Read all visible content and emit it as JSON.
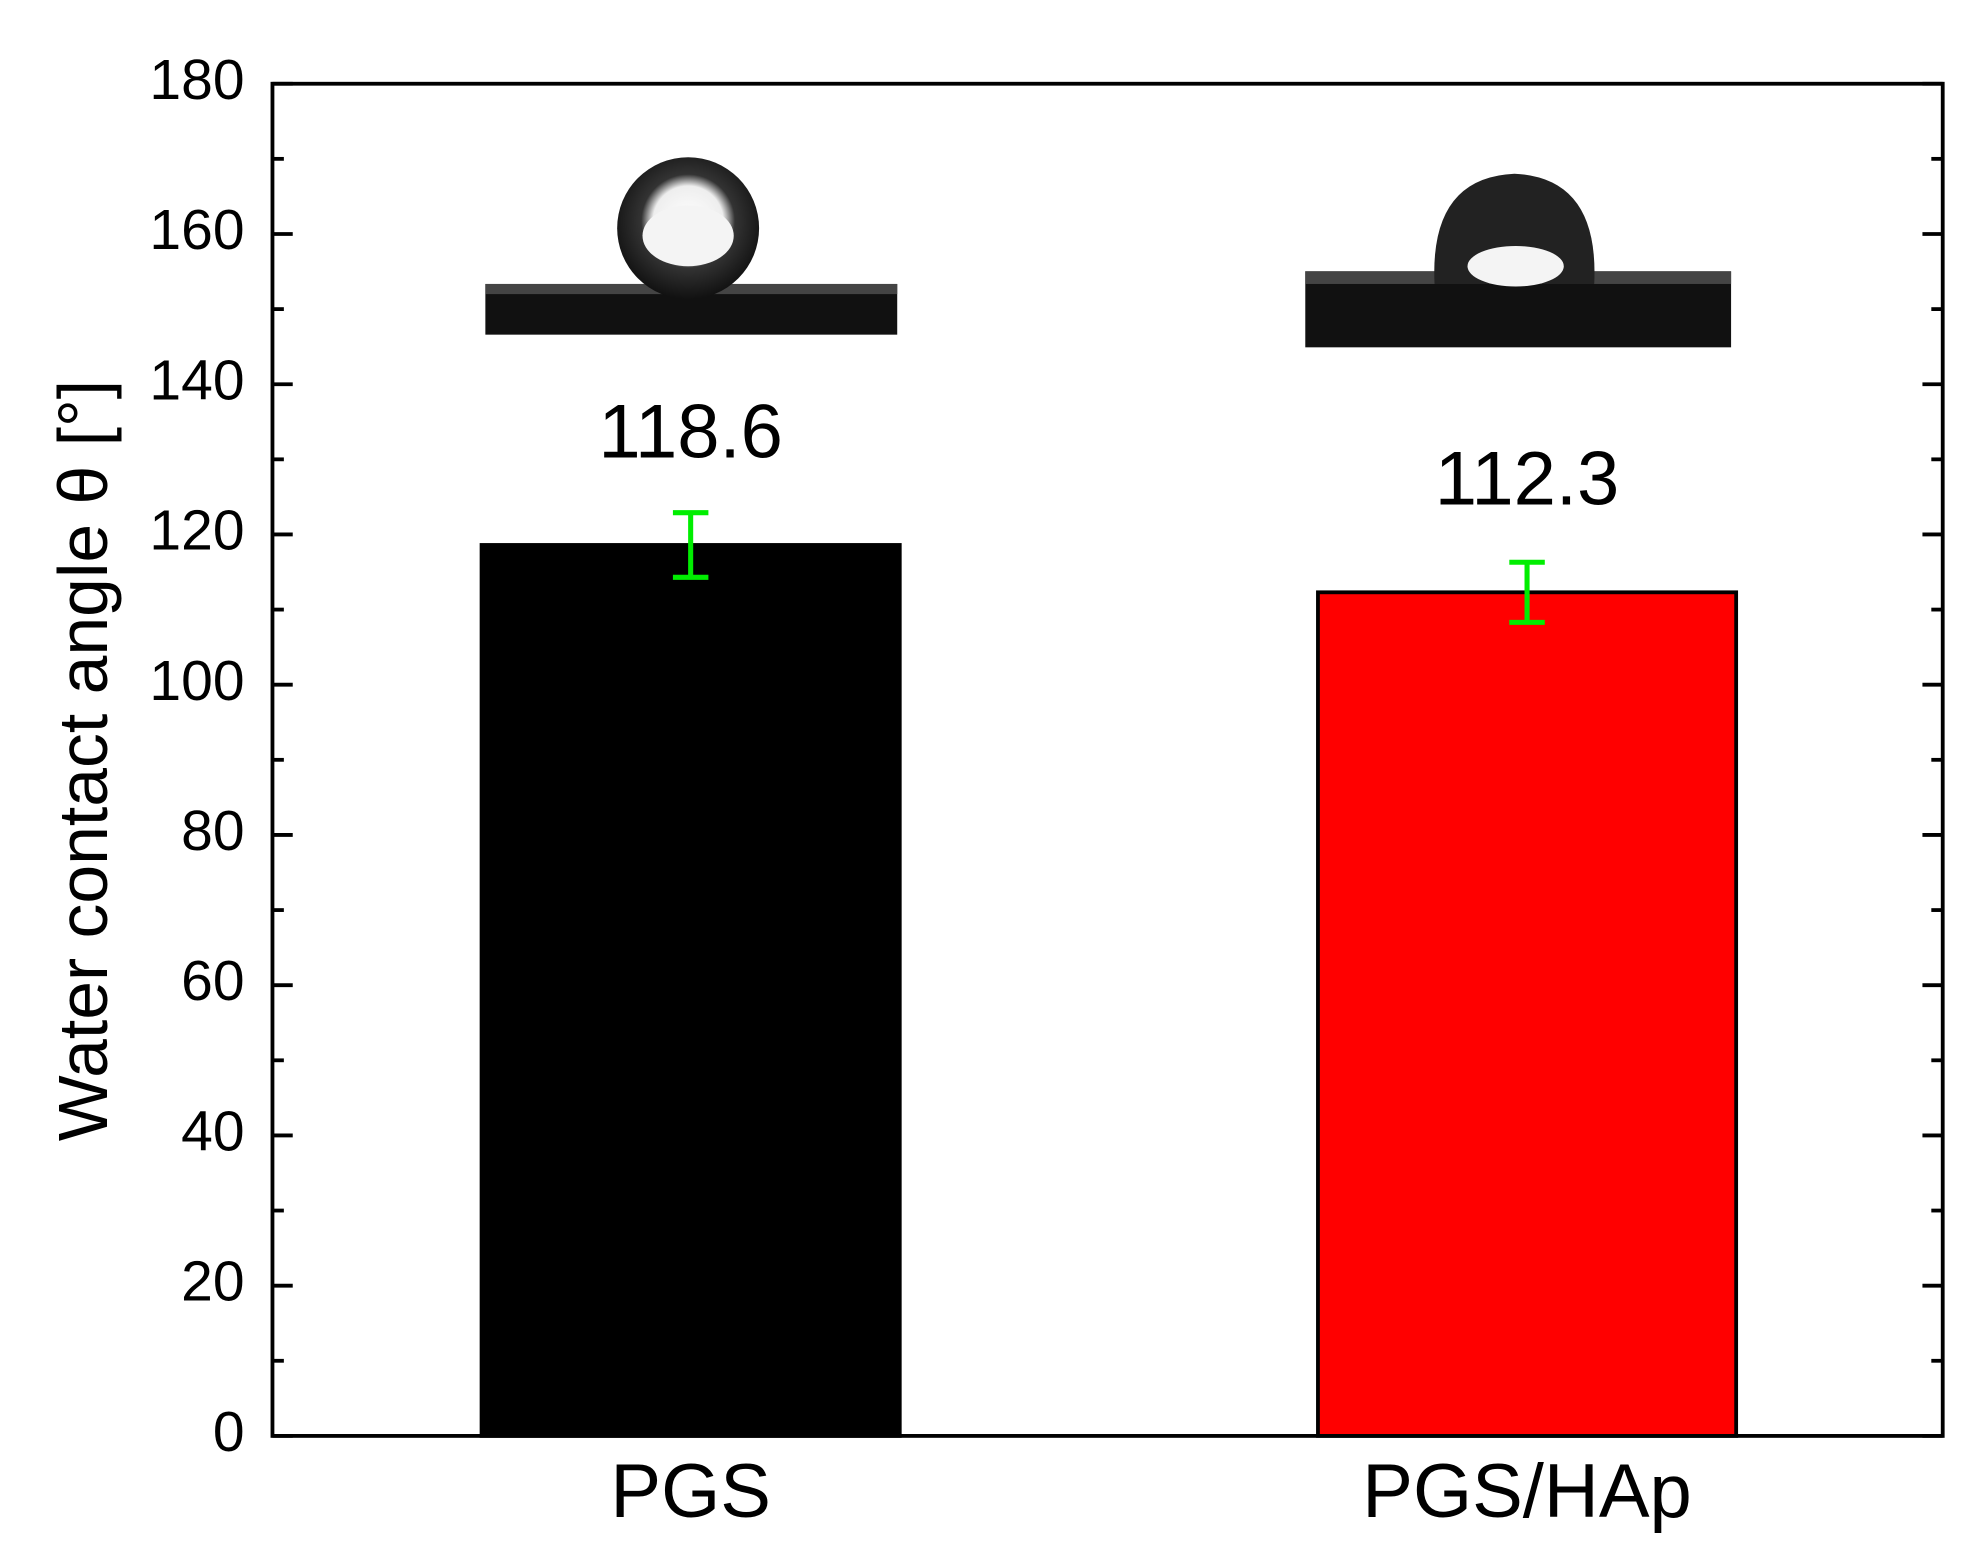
{
  "chart_data": {
    "type": "bar",
    "y_label": "Water contact angle θ [°]",
    "categories": [
      "PGS",
      "PGS/HAp"
    ],
    "values": [
      118.6,
      112.3
    ],
    "errors": [
      4.3,
      4.0
    ],
    "colors": [
      "#000000",
      "#ff0000"
    ],
    "error_color": "#00ee00",
    "ylim": [
      0,
      180
    ],
    "yticks": [
      0,
      20,
      40,
      60,
      80,
      100,
      120,
      140,
      160,
      180
    ],
    "minor_yticks": [
      10,
      30,
      50,
      70,
      90,
      110,
      130,
      150,
      170
    ]
  }
}
